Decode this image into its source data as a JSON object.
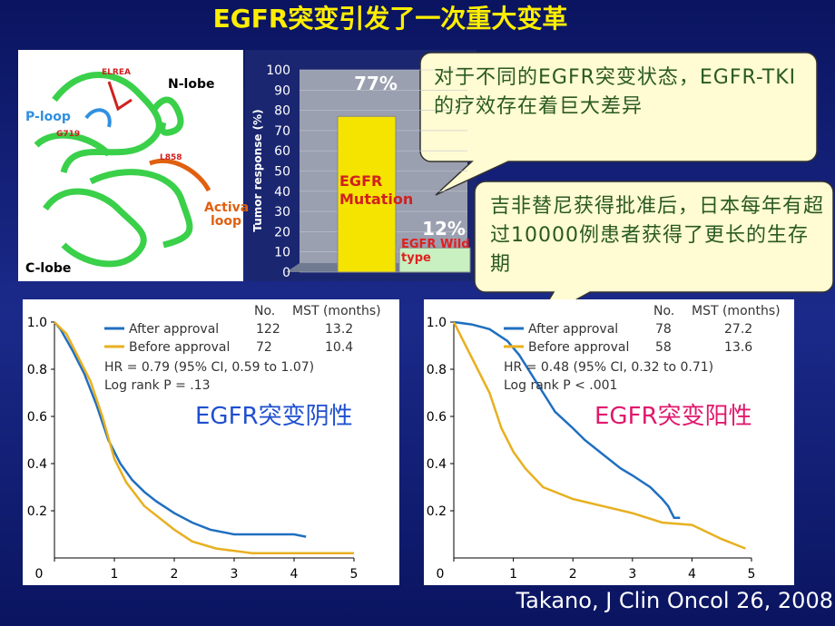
{
  "slide": {
    "title": "EGFR突变引发了一次重大变革",
    "callouts": [
      "对于不同的EGFR突变状态，EGFR-TKI的疗效存在着巨大差异",
      "吉非替尼获得批准后，日本每年有超过10000例患者获得了更长的生存期"
    ],
    "citation": "Takano, J Clin Oncol 26, 2008"
  },
  "structure": {
    "labels": [
      "ELREA",
      "N-lobe",
      "P-loop",
      "G719",
      "L858",
      "Activa",
      "loop",
      "C-lobe"
    ]
  },
  "chart_data": [
    {
      "type": "bar",
      "y_label": "Tumor response (%)",
      "categories": [
        "EGFR Mutation",
        "EGFR Wild type"
      ],
      "values": [
        77,
        12
      ],
      "value_labels": [
        "77%",
        "12%"
      ],
      "colors": [
        "#f5e400",
        "#c8f0c0"
      ],
      "ylim": [
        0,
        100
      ],
      "yticks": [
        0,
        10,
        20,
        30,
        40,
        50,
        60,
        70,
        80,
        90,
        100
      ]
    },
    {
      "type": "line",
      "label": "EGFR突变阴性",
      "label_color": "#1f4fd0",
      "legend_header": [
        "No.",
        "MST (months)"
      ],
      "annotations": [
        "HR = 0.79 (95% CI, 0.59 to 1.07)",
        "Log rank P = .13"
      ],
      "series": [
        {
          "name": "After approval",
          "n": 122,
          "mst": 13.2,
          "color": "#1f6fc0",
          "x": [
            0,
            0.1,
            0.3,
            0.5,
            0.7,
            0.9,
            1.1,
            1.3,
            1.5,
            1.7,
            2,
            2.3,
            2.6,
            3,
            4,
            4.2
          ],
          "values": [
            1,
            0.97,
            0.88,
            0.78,
            0.65,
            0.5,
            0.4,
            0.33,
            0.28,
            0.24,
            0.19,
            0.15,
            0.12,
            0.1,
            0.1,
            0.09
          ]
        },
        {
          "name": "Before approval",
          "n": 72,
          "mst": 10.4,
          "color": "#e8b020",
          "x": [
            0,
            0.2,
            0.4,
            0.6,
            0.8,
            1,
            1.2,
            1.5,
            1.8,
            2,
            2.3,
            2.7,
            3.3,
            5
          ],
          "values": [
            1,
            0.95,
            0.85,
            0.75,
            0.6,
            0.42,
            0.32,
            0.22,
            0.16,
            0.12,
            0.07,
            0.04,
            0.02,
            0.02
          ]
        }
      ],
      "xlim": [
        0,
        5
      ],
      "xticks": [
        0,
        1,
        2,
        3,
        4,
        5
      ],
      "ylim": [
        0,
        1
      ],
      "yticks": [
        0.2,
        0.4,
        0.6,
        0.8,
        {
          "value": 1,
          "label": "1.0"
        }
      ]
    },
    {
      "type": "line",
      "label": "EGFR突变阳性",
      "label_color": "#e0186c",
      "legend_header": [
        "No.",
        "MST (months)"
      ],
      "annotations": [
        "HR = 0.48 (95% CI, 0.32 to 0.71)",
        "Log rank P < .001"
      ],
      "series": [
        {
          "name": "After approval",
          "n": 78,
          "mst": 27.2,
          "color": "#1f6fc0",
          "x": [
            0,
            0.3,
            0.6,
            0.9,
            1.1,
            1.3,
            1.5,
            1.7,
            2,
            2.2,
            2.5,
            2.8,
            3,
            3.3,
            3.5,
            3.6,
            3.7,
            3.8
          ],
          "values": [
            1,
            0.99,
            0.97,
            0.92,
            0.86,
            0.78,
            0.7,
            0.62,
            0.55,
            0.5,
            0.44,
            0.38,
            0.35,
            0.3,
            0.25,
            0.22,
            0.17,
            0.17
          ]
        },
        {
          "name": "Before approval",
          "n": 58,
          "mst": 13.6,
          "color": "#e8b020",
          "x": [
            0,
            0.2,
            0.4,
            0.6,
            0.8,
            1,
            1.2,
            1.5,
            2,
            2.5,
            3,
            3.5,
            4,
            4.5,
            4.9
          ],
          "values": [
            1,
            0.9,
            0.8,
            0.7,
            0.55,
            0.45,
            0.38,
            0.3,
            0.25,
            0.22,
            0.19,
            0.15,
            0.14,
            0.08,
            0.04
          ]
        }
      ],
      "xlim": [
        0,
        5
      ],
      "xticks": [
        0,
        1,
        2,
        3,
        4,
        5
      ],
      "ylim": [
        0,
        1
      ],
      "yticks": [
        0.2,
        0.4,
        0.6,
        0.8,
        {
          "value": 1,
          "label": "1.0"
        }
      ]
    }
  ]
}
